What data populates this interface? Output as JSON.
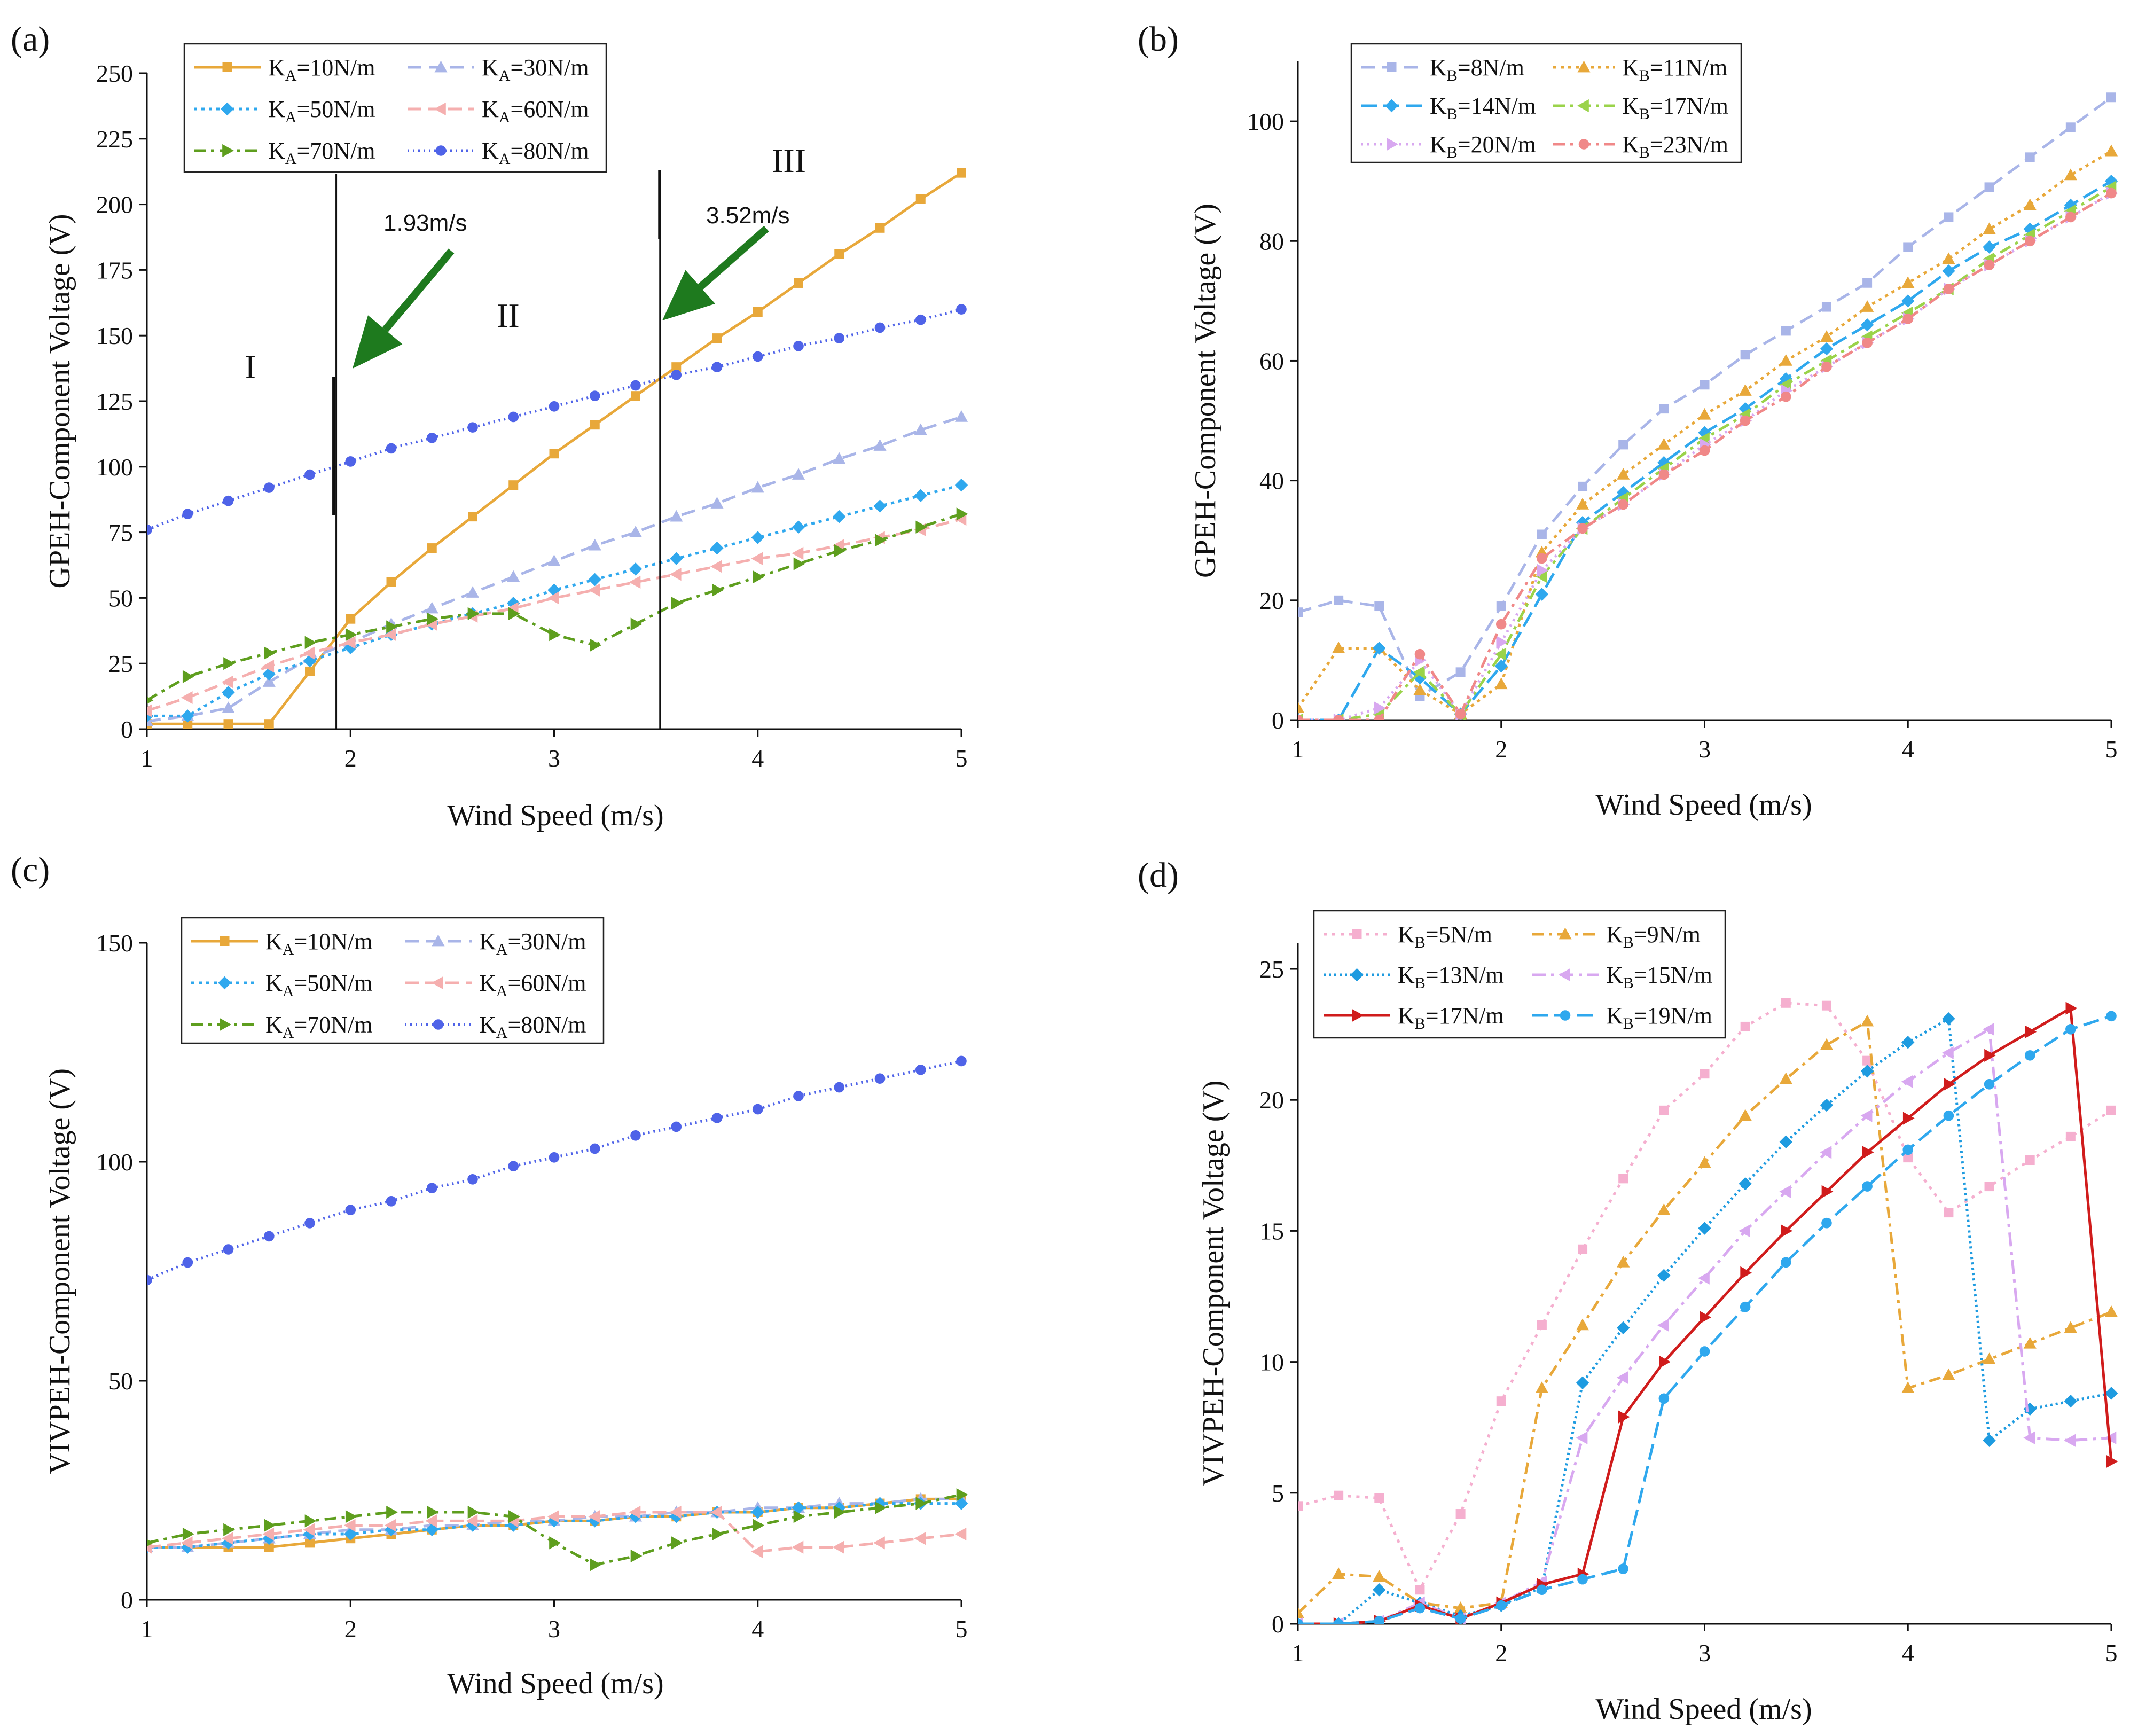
{
  "figure": {
    "panels": [
      "(a)",
      "(b)",
      "(c)",
      "(d)"
    ]
  },
  "chart_data": [
    {
      "id": "a",
      "type": "line",
      "label": "(a)",
      "xlabel": "Wind Speed (m/s)",
      "ylabel": "GPEH-Component Voltage (V)",
      "xlim": [
        1,
        5
      ],
      "ylim": [
        0,
        250
      ],
      "xticks": [
        1,
        2,
        3,
        4,
        5
      ],
      "yticks": [
        0,
        25,
        50,
        75,
        100,
        125,
        150,
        175,
        200,
        225,
        250
      ],
      "legend_cols": 2,
      "legend_position": "top-left",
      "x": [
        1.0,
        1.2,
        1.4,
        1.6,
        1.8,
        2.0,
        2.2,
        2.4,
        2.6,
        2.8,
        3.0,
        3.2,
        3.4,
        3.6,
        3.8,
        4.0,
        4.2,
        4.4,
        4.6,
        4.8,
        5.0
      ],
      "series": [
        {
          "name": "K",
          "sub": "A",
          "suffix": "=10N/m",
          "color": "#E8A83A",
          "dash": "",
          "marker": "square",
          "values": [
            2,
            2,
            2,
            2,
            22,
            42,
            56,
            69,
            81,
            93,
            105,
            116,
            127,
            138,
            149,
            159,
            170,
            181,
            191,
            202,
            212
          ]
        },
        {
          "name": "K",
          "sub": "A",
          "suffix": "=30N/m",
          "color": "#A9B5E8",
          "dash": "26,14",
          "marker": "triangle",
          "values": [
            3,
            5,
            8,
            18,
            27,
            33,
            40,
            46,
            52,
            58,
            64,
            70,
            75,
            81,
            86,
            92,
            97,
            103,
            108,
            114,
            119
          ]
        },
        {
          "name": "K",
          "sub": "A",
          "suffix": "=50N/m",
          "color": "#2FA8EE",
          "dash": "6,8",
          "marker": "diamond",
          "values": [
            5,
            5,
            14,
            21,
            26,
            31,
            36,
            40,
            44,
            48,
            53,
            57,
            61,
            65,
            69,
            73,
            77,
            81,
            85,
            89,
            93
          ]
        },
        {
          "name": "K",
          "sub": "A",
          "suffix": "=60N/m",
          "color": "#F5AFAF",
          "dash": "26,12",
          "marker": "triangle-left",
          "values": [
            7,
            12,
            18,
            24,
            29,
            33,
            36,
            40,
            43,
            46,
            50,
            53,
            56,
            59,
            62,
            65,
            67,
            70,
            73,
            76,
            80
          ]
        },
        {
          "name": "K",
          "sub": "A",
          "suffix": "=70N/m",
          "color": "#5E9E1E",
          "dash": "22,10,6,10",
          "marker": "triangle-right",
          "values": [
            11,
            20,
            25,
            29,
            33,
            36,
            39,
            42,
            44,
            44,
            36,
            32,
            40,
            48,
            53,
            58,
            63,
            68,
            72,
            77,
            82
          ]
        },
        {
          "name": "K",
          "sub": "A",
          "suffix": "=80N/m",
          "color": "#4F63E8",
          "dash": "3,7",
          "marker": "circle",
          "values": [
            76,
            82,
            87,
            92,
            97,
            102,
            107,
            111,
            115,
            119,
            123,
            127,
            131,
            135,
            138,
            142,
            146,
            149,
            153,
            156,
            160
          ]
        }
      ],
      "vlines": [
        1.93,
        3.52
      ],
      "annotations": [
        "1.93m/s",
        "3.52m/s"
      ],
      "regions": [
        "I",
        "II",
        "III"
      ]
    },
    {
      "id": "b",
      "type": "line",
      "label": "(b)",
      "xlabel": "Wind Speed (m/s)",
      "ylabel": "GPEH-Component Voltage (V)",
      "xlim": [
        1,
        5
      ],
      "ylim": [
        0,
        110
      ],
      "xticks": [
        1,
        2,
        3,
        4,
        5
      ],
      "yticks": [
        0,
        20,
        40,
        60,
        80,
        100
      ],
      "legend_cols": 2,
      "legend_position": "top-left",
      "x": [
        1.0,
        1.2,
        1.4,
        1.6,
        1.8,
        2.0,
        2.2,
        2.4,
        2.6,
        2.8,
        3.0,
        3.2,
        3.4,
        3.6,
        3.8,
        4.0,
        4.2,
        4.4,
        4.6,
        4.8,
        5.0
      ],
      "series": [
        {
          "name": "K",
          "sub": "B",
          "suffix": "=8N/m",
          "color": "#A9B5E8",
          "dash": "26,14",
          "marker": "square",
          "values": [
            18,
            20,
            19,
            4,
            8,
            19,
            31,
            39,
            46,
            52,
            56,
            61,
            65,
            69,
            73,
            79,
            84,
            89,
            94,
            99,
            104
          ]
        },
        {
          "name": "K",
          "sub": "B",
          "suffix": "=11N/m",
          "color": "#E8A83A",
          "dash": "6,8",
          "marker": "triangle",
          "values": [
            2,
            12,
            12,
            5,
            1,
            6,
            28,
            36,
            41,
            46,
            51,
            55,
            60,
            64,
            69,
            73,
            77,
            82,
            86,
            91,
            95
          ]
        },
        {
          "name": "K",
          "sub": "B",
          "suffix": "=14N/m",
          "color": "#2FA8EE",
          "dash": "30,12",
          "marker": "diamond",
          "values": [
            0,
            0,
            12,
            7,
            1,
            9,
            21,
            33,
            38,
            43,
            48,
            52,
            57,
            62,
            66,
            70,
            75,
            79,
            82,
            86,
            90
          ]
        },
        {
          "name": "K",
          "sub": "B",
          "suffix": "=17N/m",
          "color": "#9AD34A",
          "dash": "22,10,6,10",
          "marker": "triangle-left",
          "values": [
            0,
            0,
            1,
            8,
            1,
            11,
            24,
            32,
            37,
            42,
            47,
            51,
            56,
            60,
            64,
            68,
            72,
            77,
            81,
            85,
            89
          ]
        },
        {
          "name": "K",
          "sub": "B",
          "suffix": "=20N/m",
          "color": "#D8A8F0",
          "dash": "4,8",
          "marker": "triangle-right",
          "values": [
            0,
            0,
            2,
            10,
            1,
            13,
            25,
            32,
            36,
            41,
            46,
            50,
            55,
            59,
            63,
            67,
            72,
            76,
            80,
            84,
            88
          ]
        },
        {
          "name": "K",
          "sub": "B",
          "suffix": "=23N/m",
          "color": "#F08888",
          "dash": "22,10,6,10",
          "marker": "circle",
          "values": [
            0,
            0,
            0,
            11,
            1,
            16,
            27,
            32,
            36,
            41,
            45,
            50,
            54,
            59,
            63,
            67,
            72,
            76,
            80,
            84,
            88
          ]
        }
      ]
    },
    {
      "id": "c",
      "type": "line",
      "label": "(c)",
      "xlabel": "Wind Speed (m/s)",
      "ylabel": "VIVPEH-Component Voltage (V)",
      "xlim": [
        1,
        5
      ],
      "ylim": [
        0,
        150
      ],
      "xticks": [
        1,
        2,
        3,
        4,
        5
      ],
      "yticks": [
        0,
        50,
        100,
        150
      ],
      "legend_cols": 2,
      "legend_position": "top-left",
      "x": [
        1.0,
        1.2,
        1.4,
        1.6,
        1.8,
        2.0,
        2.2,
        2.4,
        2.6,
        2.8,
        3.0,
        3.2,
        3.4,
        3.6,
        3.8,
        4.0,
        4.2,
        4.4,
        4.6,
        4.8,
        5.0
      ],
      "series": [
        {
          "name": "K",
          "sub": "A",
          "suffix": "=10N/m",
          "color": "#E8A83A",
          "dash": "",
          "marker": "square",
          "values": [
            12,
            12,
            12,
            12,
            13,
            14,
            15,
            16,
            17,
            17,
            18,
            18,
            19,
            19,
            20,
            20,
            21,
            21,
            22,
            23,
            23
          ]
        },
        {
          "name": "K",
          "sub": "A",
          "suffix": "=30N/m",
          "color": "#A9B5E8",
          "dash": "26,14",
          "marker": "triangle",
          "values": [
            12,
            12,
            13,
            14,
            15,
            16,
            16,
            17,
            17,
            18,
            18,
            19,
            19,
            20,
            20,
            21,
            21,
            22,
            22,
            23,
            23
          ]
        },
        {
          "name": "K",
          "sub": "A",
          "suffix": "=50N/m",
          "color": "#2FA8EE",
          "dash": "6,8",
          "marker": "diamond",
          "values": [
            12,
            12,
            13,
            14,
            15,
            15,
            16,
            16,
            17,
            17,
            18,
            18,
            19,
            19,
            20,
            20,
            21,
            21,
            22,
            22,
            22
          ]
        },
        {
          "name": "K",
          "sub": "A",
          "suffix": "=60N/m",
          "color": "#F5AFAF",
          "dash": "26,12",
          "marker": "triangle-left",
          "values": [
            12,
            13,
            14,
            15,
            16,
            17,
            17,
            18,
            18,
            18,
            19,
            19,
            20,
            20,
            20,
            11,
            12,
            12,
            13,
            14,
            15
          ]
        },
        {
          "name": "K",
          "sub": "A",
          "suffix": "=70N/m",
          "color": "#5E9E1E",
          "dash": "22,10,6,10",
          "marker": "triangle-right",
          "values": [
            13,
            15,
            16,
            17,
            18,
            19,
            20,
            20,
            20,
            19,
            13,
            8,
            10,
            13,
            15,
            17,
            19,
            20,
            21,
            22,
            24
          ]
        },
        {
          "name": "K",
          "sub": "A",
          "suffix": "=80N/m",
          "color": "#4F63E8",
          "dash": "3,7",
          "marker": "circle",
          "values": [
            73,
            77,
            80,
            83,
            86,
            89,
            91,
            94,
            96,
            99,
            101,
            103,
            106,
            108,
            110,
            112,
            115,
            117,
            119,
            121,
            123
          ]
        }
      ]
    },
    {
      "id": "d",
      "type": "line",
      "label": "(d)",
      "xlabel": "Wind Speed (m/s)",
      "ylabel": "VIVPEH-Component Voltage (V)",
      "xlim": [
        1,
        5
      ],
      "ylim": [
        0,
        26
      ],
      "xticks": [
        1,
        2,
        3,
        4,
        5
      ],
      "yticks": [
        0,
        5,
        10,
        15,
        20,
        25
      ],
      "legend_cols": 2,
      "legend_position": "top-left",
      "x": [
        1.0,
        1.2,
        1.4,
        1.6,
        1.8,
        2.0,
        2.2,
        2.4,
        2.6,
        2.8,
        3.0,
        3.2,
        3.4,
        3.6,
        3.8,
        4.0,
        4.2,
        4.4,
        4.6,
        4.8,
        5.0
      ],
      "series": [
        {
          "name": "K",
          "sub": "B",
          "suffix": "=5N/m",
          "color": "#F5AFCF",
          "dash": "6,10",
          "marker": "square",
          "values": [
            4.5,
            4.9,
            4.8,
            1.3,
            4.2,
            8.5,
            11.4,
            14.3,
            17.0,
            19.6,
            21.0,
            22.8,
            23.7,
            23.6,
            21.5,
            17.8,
            15.7,
            16.7,
            17.7,
            18.6,
            19.6
          ]
        },
        {
          "name": "K",
          "sub": "B",
          "suffix": "=9N/m",
          "color": "#E8A83A",
          "dash": "22,10,6,10",
          "marker": "triangle",
          "values": [
            0.4,
            1.9,
            1.8,
            0.8,
            0.6,
            0.8,
            9.0,
            11.4,
            13.8,
            15.8,
            17.6,
            19.4,
            20.8,
            22.1,
            23.0,
            9.0,
            9.5,
            10.1,
            10.7,
            11.3,
            11.9
          ]
        },
        {
          "name": "K",
          "sub": "B",
          "suffix": "=13N/m",
          "color": "#1E9BE0",
          "dash": "4,6",
          "marker": "diamond",
          "values": [
            0.0,
            0.0,
            1.3,
            0.8,
            0.3,
            0.7,
            1.4,
            9.2,
            11.3,
            13.3,
            15.1,
            16.8,
            18.4,
            19.8,
            21.1,
            22.2,
            23.1,
            7.0,
            8.2,
            8.5,
            8.8
          ]
        },
        {
          "name": "K",
          "sub": "B",
          "suffix": "=15N/m",
          "color": "#D8A8F0",
          "dash": "26,10,6,10",
          "marker": "triangle-left",
          "values": [
            0.0,
            0.0,
            0.1,
            0.8,
            0.2,
            0.8,
            1.6,
            7.1,
            9.4,
            11.4,
            13.2,
            15.0,
            16.5,
            18.0,
            19.4,
            20.7,
            21.8,
            22.7,
            7.1,
            7.0,
            7.1
          ]
        },
        {
          "name": "K",
          "sub": "B",
          "suffix": "=17N/m",
          "color": "#D01C1C",
          "dash": "",
          "marker": "triangle-right",
          "values": [
            0.0,
            0.0,
            0.1,
            0.7,
            0.2,
            0.8,
            1.5,
            1.9,
            7.9,
            10.0,
            11.7,
            13.4,
            15.0,
            16.5,
            18.0,
            19.3,
            20.6,
            21.7,
            22.6,
            23.5,
            6.2
          ]
        },
        {
          "name": "K",
          "sub": "B",
          "suffix": "=19N/m",
          "color": "#2FA8EE",
          "dash": "30,12",
          "marker": "circle",
          "values": [
            0.0,
            0.0,
            0.1,
            0.6,
            0.2,
            0.7,
            1.3,
            1.7,
            2.1,
            8.6,
            10.4,
            12.1,
            13.8,
            15.3,
            16.7,
            18.1,
            19.4,
            20.6,
            21.7,
            22.7,
            23.2
          ]
        }
      ]
    }
  ]
}
